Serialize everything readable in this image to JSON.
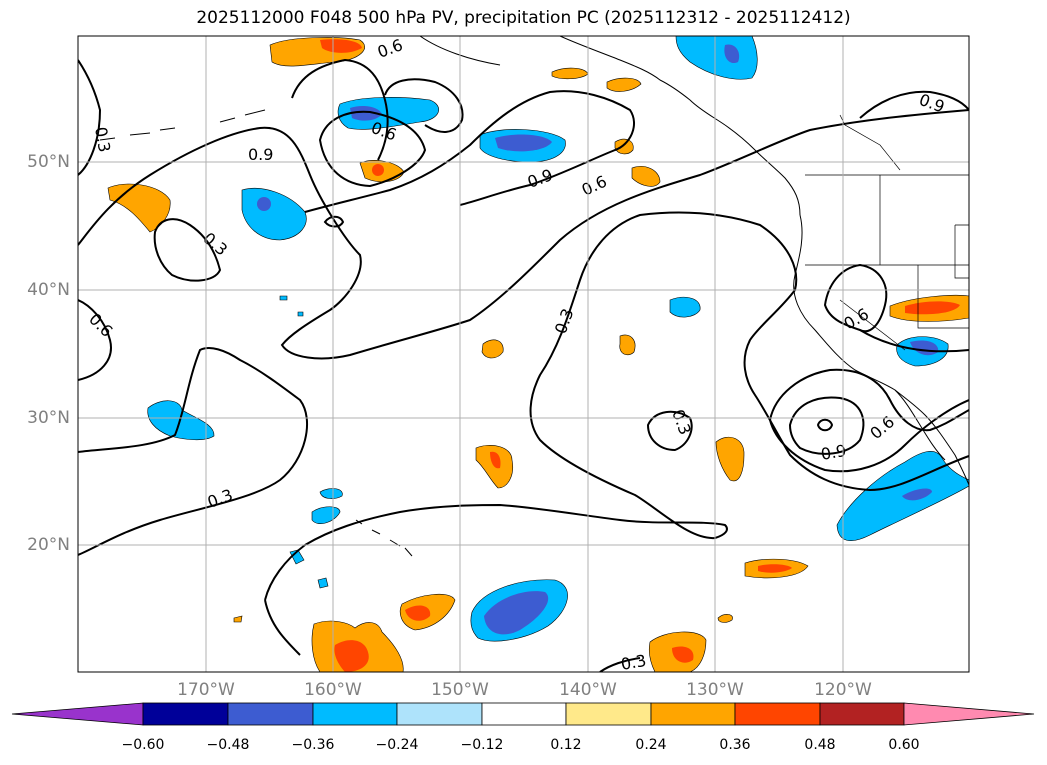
{
  "title": "2025112000 F048 500 hPa PV, precipitation PC (2025112312 - 2025112412)",
  "lat_labels": [
    "50°N",
    "40°N",
    "30°N",
    "20°N"
  ],
  "lon_labels": [
    "170°W",
    "160°W",
    "150°W",
    "140°W",
    "130°W",
    "120°W"
  ],
  "colorbar": {
    "ticks": [
      "−0.60",
      "−0.48",
      "−0.36",
      "−0.24",
      "−0.12",
      "0.12",
      "0.24",
      "0.36",
      "0.48",
      "0.60"
    ],
    "colors": [
      "#9933cc",
      "#000099",
      "#3d5cd1",
      "#00bbff",
      "#aee3fb",
      "#ffffff",
      "#ffe98a",
      "#ffa500",
      "#ff4500",
      "#b22222",
      "#ff8ab0"
    ]
  },
  "contour_labels": [
    "0.3",
    "0.6",
    "0.9"
  ],
  "colors": {
    "neg_light": "#00bbff",
    "neg_mid": "#3d5cd1",
    "pos_light": "#ffa500",
    "pos_mid": "#ff4500",
    "pos_dark": "#b22222"
  }
}
